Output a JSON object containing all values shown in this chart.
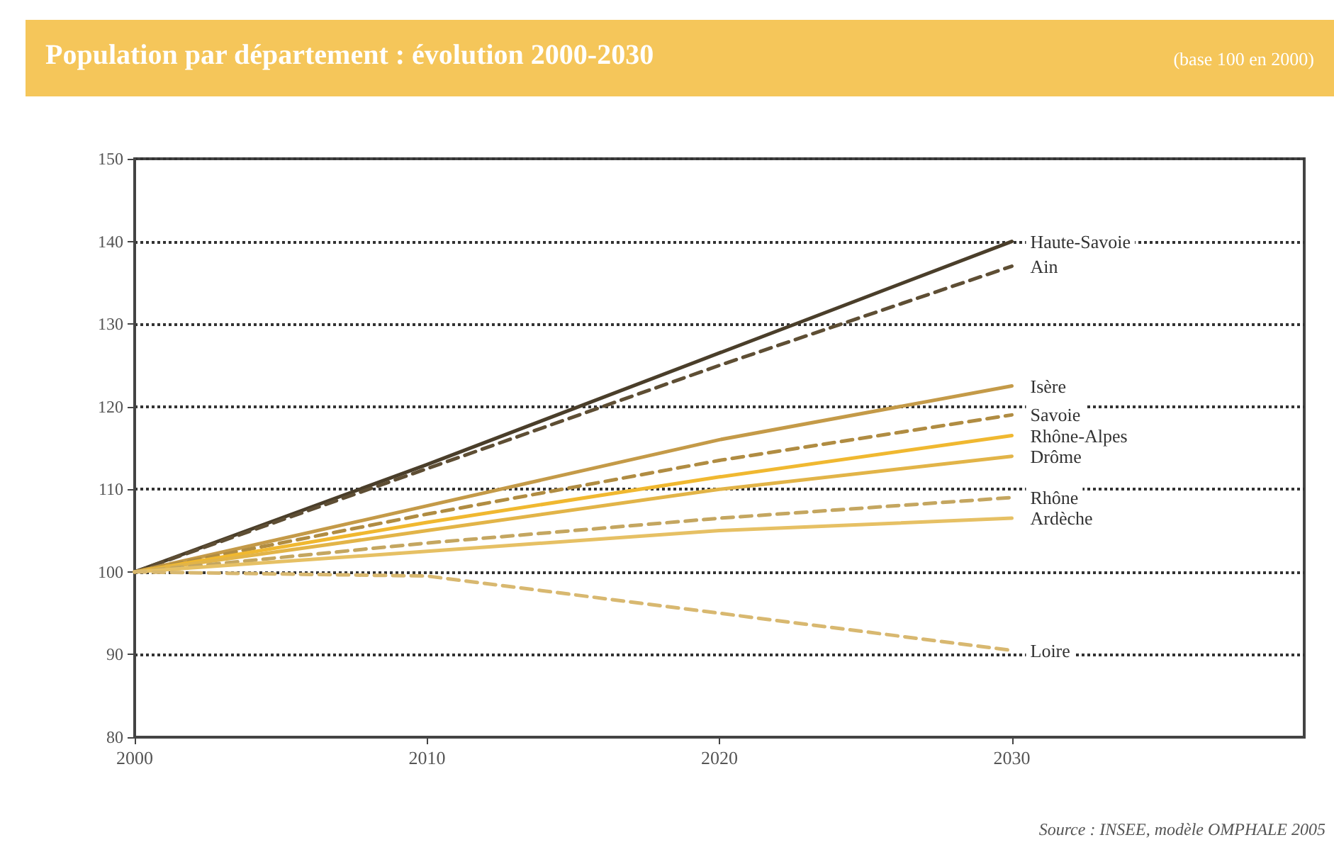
{
  "chart_data": {
    "type": "line",
    "title": "Population par département : évolution 2000-2030",
    "subtitle": "(base 100 en 2000)",
    "annotations": [
      "Source : INSEE, modèle OMPHALE 2005"
    ],
    "x": [
      2000,
      2010,
      2020,
      2030
    ],
    "series": [
      {
        "name": "Haute-Savoie",
        "color": "#4a3e2a",
        "line_style": "solid",
        "values": [
          100,
          113,
          126.5,
          140
        ]
      },
      {
        "name": "Ain",
        "color": "#5e4e34",
        "line_style": "dashed",
        "values": [
          100,
          112.5,
          125,
          137
        ]
      },
      {
        "name": "Isère",
        "color": "#c49a48",
        "line_style": "solid",
        "values": [
          100,
          108,
          116,
          122.5
        ]
      },
      {
        "name": "Savoie",
        "color": "#b08c42",
        "line_style": "dashed",
        "values": [
          100,
          107,
          113.5,
          119
        ]
      },
      {
        "name": "Rhône-Alpes",
        "color": "#f0b830",
        "line_style": "solid",
        "values": [
          100,
          106,
          111.5,
          116.5
        ]
      },
      {
        "name": "Drôme",
        "color": "#e2b448",
        "line_style": "solid",
        "values": [
          100,
          105,
          110,
          114
        ]
      },
      {
        "name": "Rhône",
        "color": "#c4a660",
        "line_style": "dashed",
        "values": [
          100,
          103.5,
          106.5,
          109
        ]
      },
      {
        "name": "Ardèche",
        "color": "#e6c064",
        "line_style": "solid",
        "values": [
          100,
          102.5,
          105,
          106.5
        ]
      },
      {
        "name": "Loire",
        "color": "#d8b870",
        "line_style": "dashed",
        "values": [
          100,
          99.5,
          95,
          90.5
        ]
      }
    ],
    "xlim": [
      2000,
      2040
    ],
    "xticks": [
      2000,
      2010,
      2020,
      2030
    ],
    "ylim": [
      80,
      150
    ],
    "yticks": [
      80,
      90,
      100,
      110,
      120,
      130,
      140,
      150
    ],
    "grid": "y",
    "legend": false,
    "marker": "none"
  }
}
